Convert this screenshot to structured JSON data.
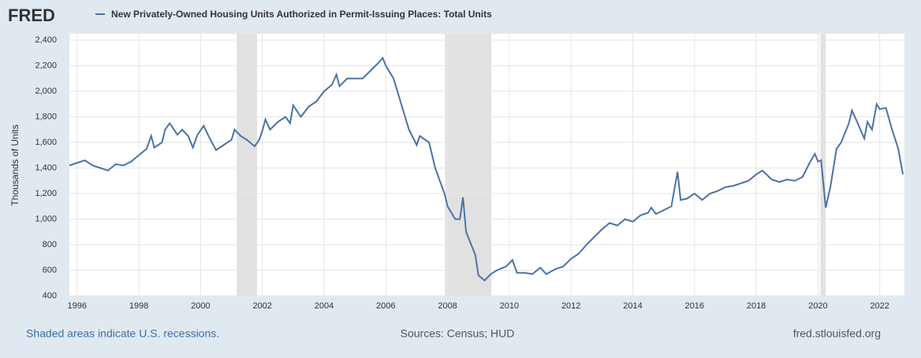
{
  "chart_data": {
    "type": "line",
    "logo": "FRED",
    "title": "New Privately-Owned Housing Units Authorized in Permit-Issuing Places: Total Units",
    "y_label": "Thousands of Units",
    "note": "Shaded areas indicate U.S. recessions.",
    "source": "Sources: Census; HUD",
    "site": "fred.stlouisfed.org",
    "recessions": [
      [
        2001.17,
        2001.83
      ],
      [
        2007.92,
        2009.42
      ],
      [
        2020.08,
        2020.25
      ]
    ],
    "xlim": [
      1995.75,
      2022.8
    ],
    "xticks": [
      1996,
      1998,
      2000,
      2002,
      2004,
      2006,
      2008,
      2010,
      2012,
      2014,
      2016,
      2018,
      2020,
      2022
    ],
    "ylim": [
      400,
      2400
    ],
    "yticks": [
      400,
      600,
      800,
      {
        "value": 1000,
        "label": "1,000"
      },
      {
        "value": 1200,
        "label": "1,200"
      },
      {
        "value": 1400,
        "label": "1,400"
      },
      {
        "value": 1600,
        "label": "1,600"
      },
      {
        "value": 1800,
        "label": "1,800"
      },
      {
        "value": 2000,
        "label": "2,000"
      },
      {
        "value": 2200,
        "label": "2,200"
      },
      {
        "value": 2400,
        "label": "2,400"
      }
    ],
    "grid": true,
    "x": [
      1995.75,
      1996,
      1996.25,
      1996.5,
      1996.75,
      1997,
      1997.25,
      1997.5,
      1997.75,
      1998,
      1998.25,
      1998.4,
      1998.5,
      1998.75,
      1998.85,
      1999,
      1999.25,
      1999.4,
      1999.6,
      1999.75,
      1999.9,
      2000.1,
      2000.3,
      2000.5,
      2000.75,
      2001,
      2001.1,
      2001.3,
      2001.5,
      2001.75,
      2001.9,
      2002,
      2002.1,
      2002.25,
      2002.5,
      2002.75,
      2002.9,
      2003,
      2003.25,
      2003.5,
      2003.75,
      2004,
      2004.25,
      2004.4,
      2004.5,
      2004.75,
      2005,
      2005.25,
      2005.5,
      2005.75,
      2005.9,
      2006,
      2006.25,
      2006.5,
      2006.75,
      2007,
      2007.1,
      2007.4,
      2007.6,
      2007.9,
      2008,
      2008.25,
      2008.4,
      2008.5,
      2008.6,
      2008.9,
      2009,
      2009.2,
      2009.4,
      2009.6,
      2009.9,
      2010.1,
      2010.25,
      2010.5,
      2010.75,
      2011,
      2011.2,
      2011.5,
      2011.75,
      2012,
      2012.25,
      2012.5,
      2012.75,
      2013,
      2013.25,
      2013.5,
      2013.75,
      2014,
      2014.25,
      2014.5,
      2014.6,
      2014.75,
      2015,
      2015.25,
      2015.45,
      2015.55,
      2015.75,
      2016,
      2016.25,
      2016.5,
      2016.75,
      2017,
      2017.25,
      2017.5,
      2017.75,
      2018,
      2018.2,
      2018.5,
      2018.75,
      2019,
      2019.25,
      2019.5,
      2019.75,
      2019.9,
      2020,
      2020.1,
      2020.25,
      2020.4,
      2020.6,
      2020.75,
      2021,
      2021.1,
      2021.25,
      2021.5,
      2021.6,
      2021.75,
      2021.9,
      2022,
      2022.2,
      2022.4,
      2022.6,
      2022.75
    ],
    "series": [
      {
        "name": "New Privately-Owned Housing Units Authorized in Permit-Issuing Places: Total Units",
        "color": "#4b73a5",
        "values": [
          1420,
          1440,
          1460,
          1420,
          1400,
          1380,
          1430,
          1420,
          1450,
          1500,
          1550,
          1650,
          1560,
          1600,
          1700,
          1750,
          1660,
          1700,
          1650,
          1560,
          1660,
          1730,
          1630,
          1540,
          1580,
          1620,
          1700,
          1650,
          1620,
          1570,
          1620,
          1690,
          1780,
          1700,
          1760,
          1800,
          1750,
          1890,
          1800,
          1880,
          1920,
          2000,
          2050,
          2130,
          2040,
          2100,
          2100,
          2100,
          2160,
          2220,
          2260,
          2200,
          2100,
          1900,
          1700,
          1580,
          1650,
          1600,
          1400,
          1200,
          1100,
          1000,
          1000,
          1170,
          900,
          720,
          560,
          520,
          570,
          600,
          630,
          680,
          580,
          580,
          570,
          620,
          570,
          610,
          630,
          690,
          730,
          800,
          860,
          920,
          970,
          950,
          1000,
          980,
          1030,
          1050,
          1090,
          1040,
          1070,
          1100,
          1370,
          1150,
          1160,
          1200,
          1150,
          1200,
          1220,
          1250,
          1260,
          1280,
          1300,
          1350,
          1380,
          1310,
          1290,
          1310,
          1300,
          1330,
          1450,
          1510,
          1450,
          1460,
          1090,
          1250,
          1550,
          1600,
          1750,
          1850,
          1770,
          1630,
          1760,
          1700,
          1900,
          1860,
          1870,
          1700,
          1550,
          1350
        ]
      }
    ]
  }
}
